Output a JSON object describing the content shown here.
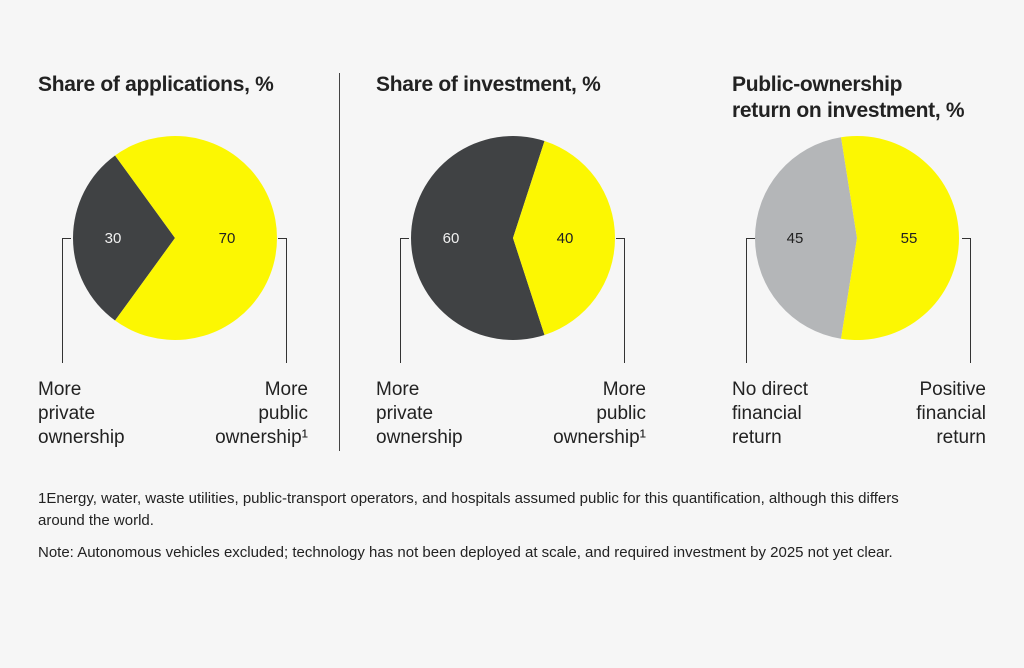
{
  "colors": {
    "yellow": "#fcf702",
    "dark": "#404244",
    "gray": "#b4b6b8"
  },
  "panels": [
    {
      "title": "Share of applications, %",
      "left_label": "More\nprivate\nownership",
      "right_label": "More\npublic\nownership¹"
    },
    {
      "title": "Share of investment, %",
      "left_label": "More\nprivate\nownership",
      "right_label": "More\npublic\nownership¹"
    },
    {
      "title": "Public-ownership\nreturn on investment, %",
      "left_label": "No direct\nfinancial\nreturn",
      "right_label": "Positive\nfinancial\nreturn"
    }
  ],
  "chart_data": [
    {
      "type": "pie",
      "title": "Share of applications, %",
      "slices": [
        {
          "label": "More private ownership",
          "value": 30,
          "color": "#404244"
        },
        {
          "label": "More public ownership¹",
          "value": 70,
          "color": "#fcf702"
        }
      ]
    },
    {
      "type": "pie",
      "title": "Share of investment, %",
      "slices": [
        {
          "label": "More private ownership",
          "value": 60,
          "color": "#404244"
        },
        {
          "label": "More public ownership¹",
          "value": 40,
          "color": "#fcf702"
        }
      ]
    },
    {
      "type": "pie",
      "title": "Public-ownership return on investment, %",
      "slices": [
        {
          "label": "No direct financial return",
          "value": 45,
          "color": "#b4b6b8"
        },
        {
          "label": "Positive financial return",
          "value": 55,
          "color": "#fcf702"
        }
      ]
    }
  ],
  "notes": {
    "footnote": "1Energy, water, waste utilities, public-transport operators, and hospitals assumed public for this quantification, although this differs around the world.",
    "note": "Note: Autonomous vehicles excluded; technology has not been deployed at scale, and required investment by 2025 not yet clear."
  }
}
